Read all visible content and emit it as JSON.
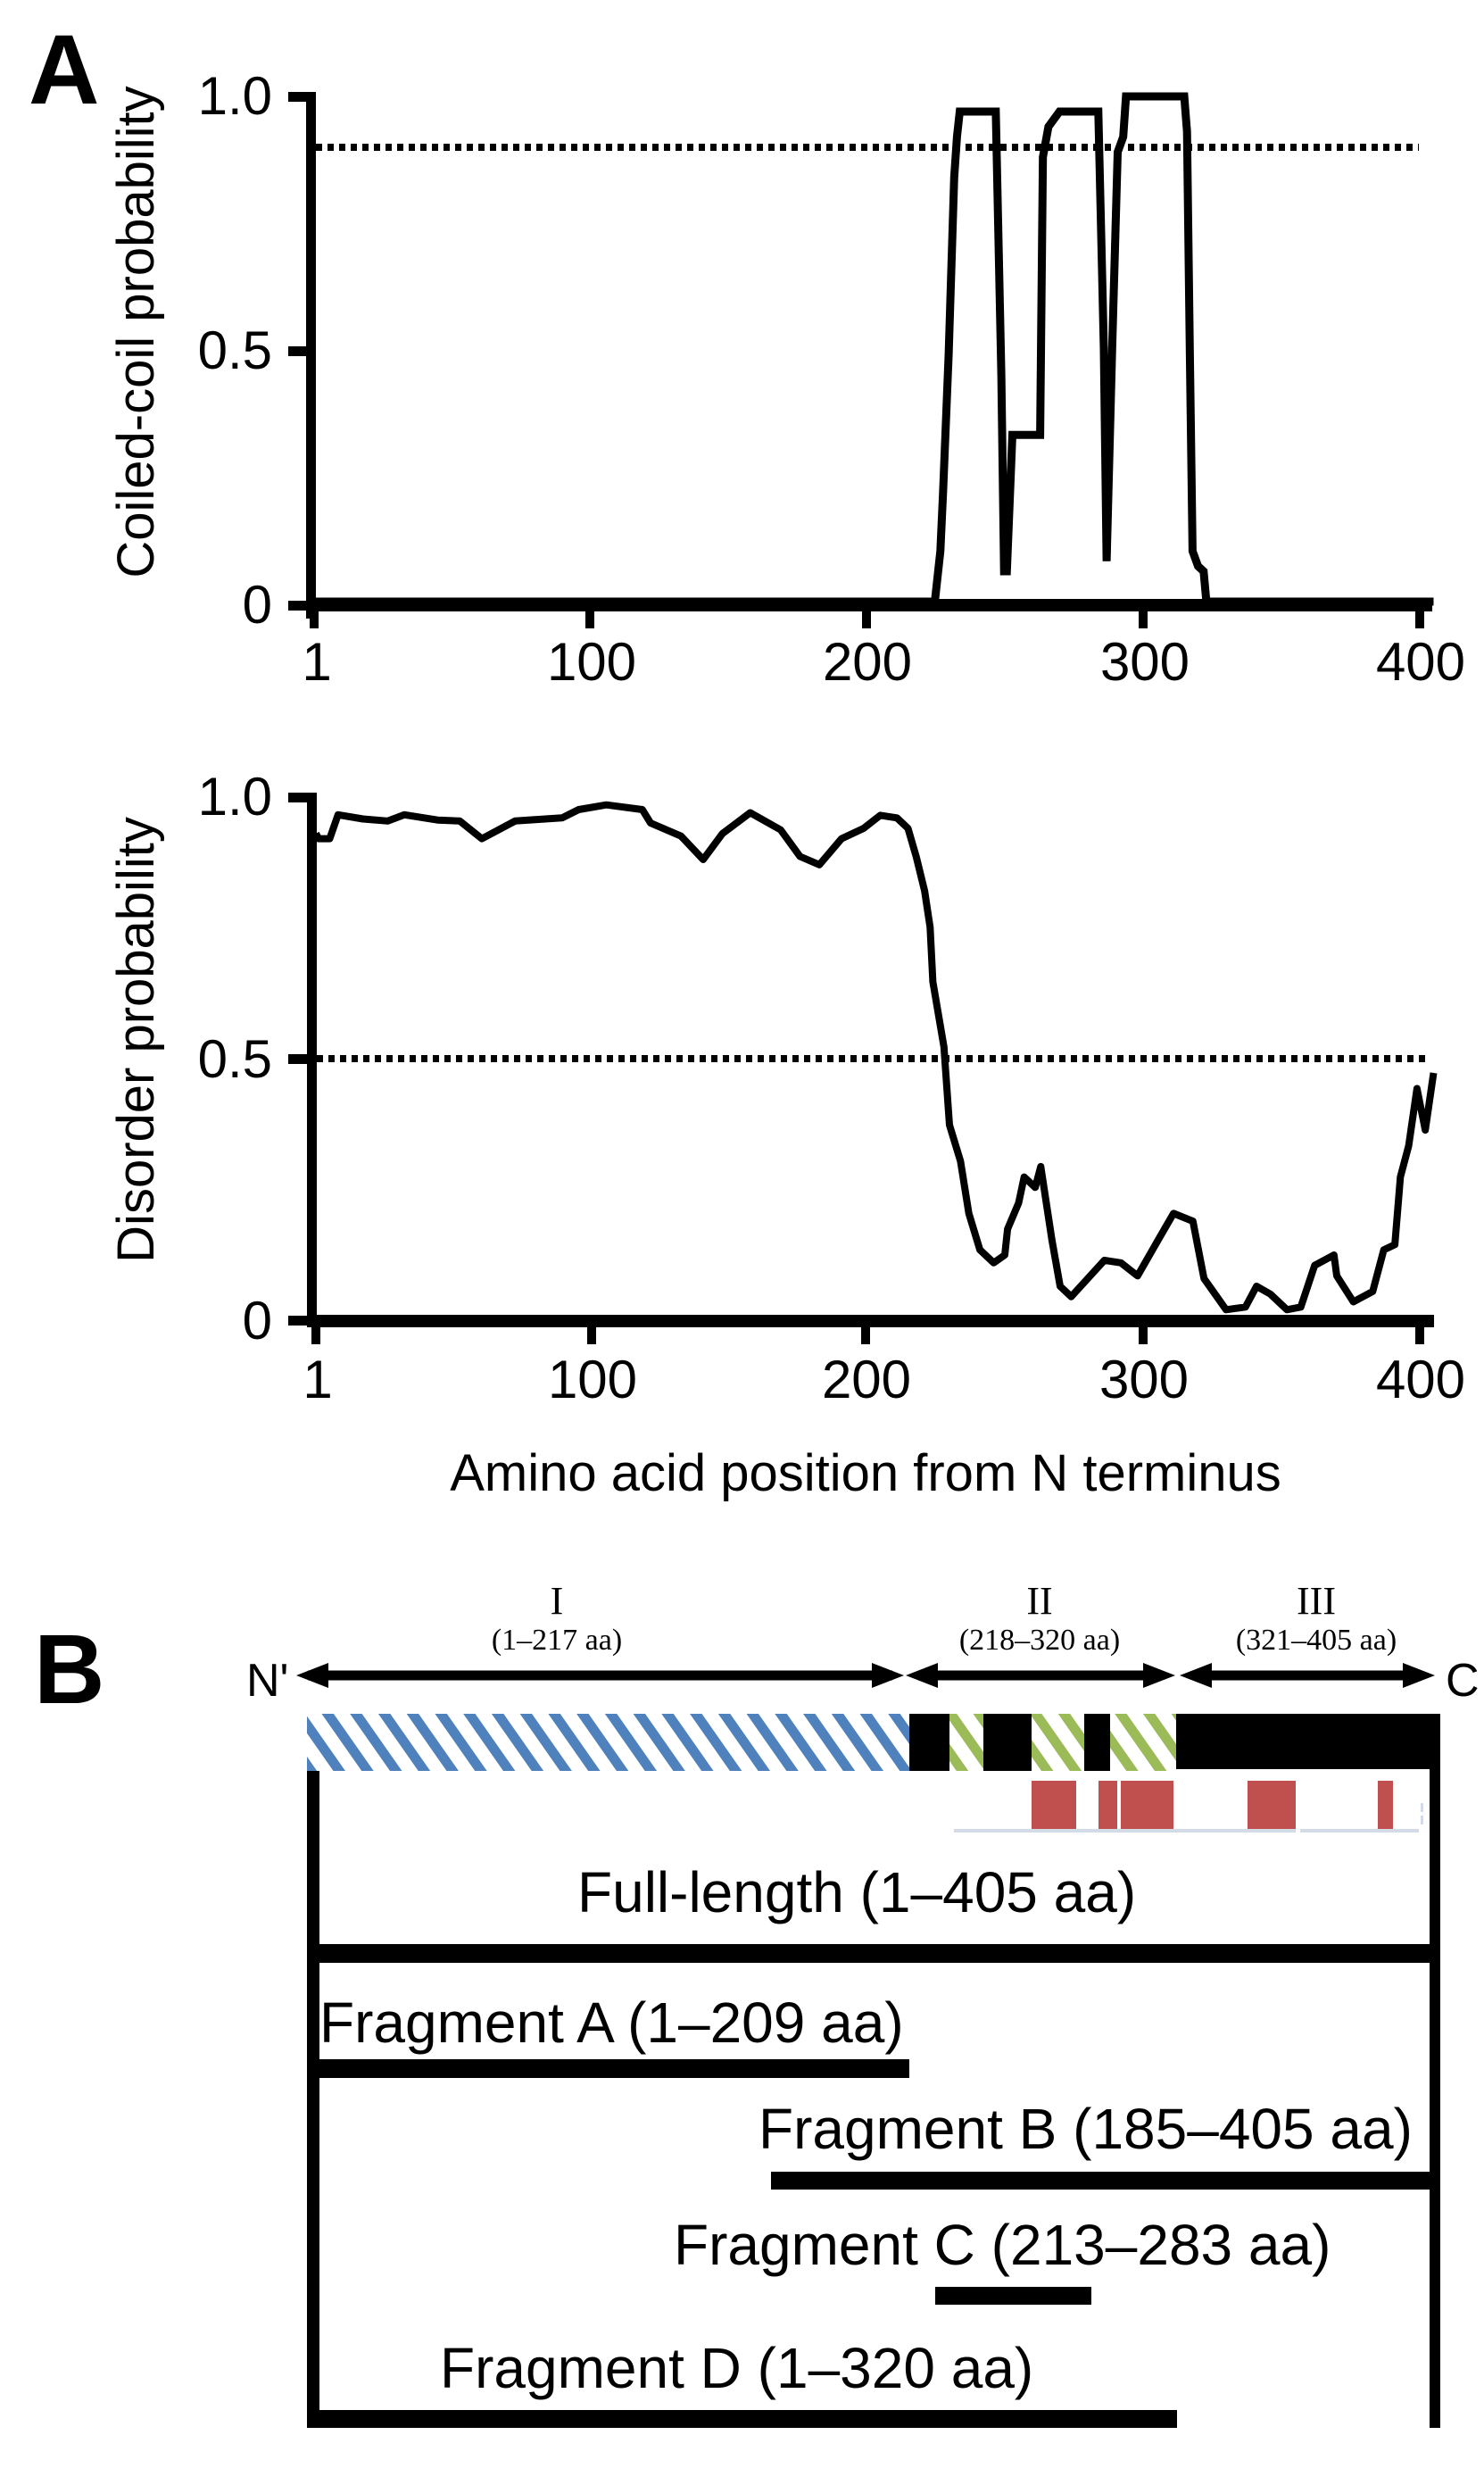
{
  "panels": {
    "a": {
      "letter": "A"
    },
    "b": {
      "letter": "B"
    }
  },
  "chart_data": [
    {
      "type": "line",
      "title": "",
      "xlabel": "",
      "ylabel": "Coiled-coil probability",
      "xlim": [
        1,
        405
      ],
      "ylim": [
        0,
        1.0
      ],
      "xticks": [
        1,
        100,
        200,
        300,
        400
      ],
      "xtick_labels": [
        "1",
        "100",
        "200",
        "300",
        "400"
      ],
      "yticks": [
        0,
        0.5,
        1.0
      ],
      "ytick_labels": [
        "0",
        "0.5",
        "1.0"
      ],
      "grid": false,
      "threshold": {
        "y": 0.9,
        "style": "dotted"
      },
      "series": [
        {
          "name": "Coiled-coil probability",
          "x": [
            1,
            225,
            227,
            228,
            230,
            232,
            233,
            234,
            247,
            249,
            250,
            251,
            253,
            263,
            264,
            266,
            270,
            284,
            286,
            287,
            289,
            291,
            293,
            294,
            315,
            316,
            317,
            318,
            320,
            322,
            323,
            405
          ],
          "y": [
            0,
            0,
            0.1,
            0.22,
            0.49,
            0.84,
            0.92,
            0.97,
            0.97,
            0.45,
            0.06,
            0.06,
            0.33,
            0.33,
            0.88,
            0.94,
            0.97,
            0.97,
            0.5,
            0.08,
            0.5,
            0.89,
            0.92,
            1.0,
            1.0,
            0.93,
            0.5,
            0.1,
            0.07,
            0.06,
            0,
            0
          ]
        }
      ]
    },
    {
      "type": "line",
      "title": "",
      "xlabel": "Amino acid position from N terminus",
      "ylabel": "Disorder probability",
      "xlim": [
        1,
        405
      ],
      "ylim": [
        0,
        1.0
      ],
      "xticks": [
        1,
        100,
        200,
        300,
        400
      ],
      "xtick_labels": [
        "1",
        "100",
        "200",
        "300",
        "400"
      ],
      "yticks": [
        0,
        0.5,
        1.0
      ],
      "ytick_labels": [
        "0",
        "0.5",
        "1.0"
      ],
      "grid": false,
      "threshold": {
        "y": 0.5,
        "style": "dotted"
      },
      "series": [
        {
          "name": "Disorder probability",
          "x": [
            1,
            2,
            6,
            9,
            18,
            27,
            33,
            45,
            53,
            61,
            73,
            90,
            96,
            106,
            119,
            122,
            133,
            141,
            148,
            158,
            169,
            176,
            183,
            191,
            199,
            205,
            211,
            215,
            218,
            221,
            223,
            224,
            228,
            230,
            234,
            237,
            241,
            246,
            250,
            251,
            255,
            257,
            261,
            263,
            267,
            270,
            274,
            280,
            286,
            292,
            298,
            305,
            311,
            318,
            322,
            330,
            337,
            341,
            346,
            352,
            357,
            362,
            369,
            370,
            376,
            383,
            387,
            391,
            393,
            396,
            399,
            402,
            405
          ],
          "y": [
            0.93,
            0.92,
            0.92,
            0.966,
            0.958,
            0.954,
            0.966,
            0.956,
            0.954,
            0.92,
            0.954,
            0.96,
            0.976,
            0.985,
            0.976,
            0.95,
            0.925,
            0.88,
            0.93,
            0.97,
            0.937,
            0.886,
            0.87,
            0.92,
            0.94,
            0.965,
            0.96,
            0.94,
            0.885,
            0.82,
            0.75,
            0.645,
            0.52,
            0.37,
            0.3,
            0.2,
            0.13,
            0.105,
            0.12,
            0.17,
            0.22,
            0.27,
            0.25,
            0.29,
            0.15,
            0.06,
            0.04,
            0.075,
            0.11,
            0.105,
            0.08,
            0.145,
            0.2,
            0.185,
            0.075,
            0.015,
            0.02,
            0.06,
            0.045,
            0.015,
            0.02,
            0.1,
            0.12,
            0.08,
            0.03,
            0.05,
            0.13,
            0.14,
            0.27,
            0.33,
            0.44,
            0.36,
            0.47
          ]
        }
      ]
    },
    {
      "type": "diagram",
      "title": "Domain organization and fragments",
      "terminals": {
        "n": "N'",
        "c": "C"
      },
      "domains": [
        {
          "roman": "I",
          "range": "(1–217 aa)",
          "start": 1,
          "end": 217
        },
        {
          "roman": "II",
          "range": "(218–320 aa)",
          "start": 218,
          "end": 320
        },
        {
          "roman": "III",
          "range": "(321–405 aa)",
          "start": 321,
          "end": 405
        }
      ],
      "domain_bar": [
        {
          "start": 1,
          "end": 217,
          "fill": "hatch-blue"
        },
        {
          "start": 218,
          "end": 232,
          "fill": "black"
        },
        {
          "start": 232,
          "end": 244,
          "fill": "hatch-green"
        },
        {
          "start": 244,
          "end": 261,
          "fill": "black"
        },
        {
          "start": 261,
          "end": 280,
          "fill": "hatch-green"
        },
        {
          "start": 280,
          "end": 290,
          "fill": "black"
        },
        {
          "start": 290,
          "end": 313,
          "fill": "hatch-green"
        },
        {
          "start": 313,
          "end": 405,
          "fill": "black"
        }
      ],
      "red_blocks": [
        {
          "start": 261,
          "end": 277
        },
        {
          "start": 285,
          "end": 291
        },
        {
          "start": 293,
          "end": 311
        },
        {
          "start": 338,
          "end": 355
        },
        {
          "start": 385,
          "end": 390
        }
      ],
      "fragments": [
        {
          "label": "Full-length (1–405 aa)",
          "start": 1,
          "end": 405
        },
        {
          "label": "Fragment A (1–209 aa)",
          "start": 1,
          "end": 209
        },
        {
          "label": "Fragment B (185–405 aa)",
          "start": 185,
          "end": 405
        },
        {
          "label": "Fragment C (213–283 aa)",
          "start": 213,
          "end": 283
        },
        {
          "label": "Fragment D (1–320 aa)",
          "start": 1,
          "end": 320
        }
      ]
    }
  ],
  "colors": {
    "line": "#000000",
    "hatch_blue": "#4f81bd",
    "hatch_green": "#9bbb59",
    "red_block": "#c0504d",
    "baseline": "#d3dbe6"
  }
}
